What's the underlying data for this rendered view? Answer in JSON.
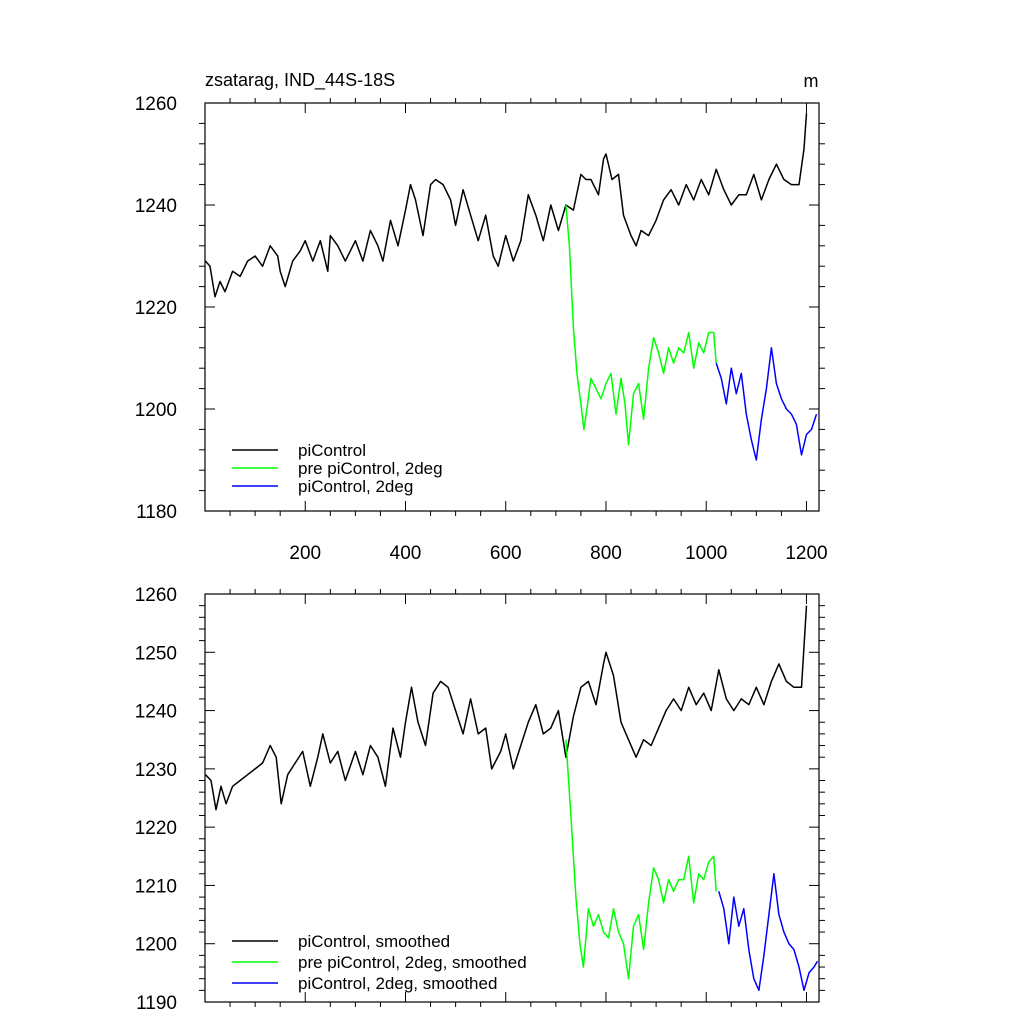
{
  "chart_data": [
    {
      "type": "line",
      "title": "zsatarag, IND_44S-18S",
      "units_label": "m",
      "xlim": [
        0,
        1225
      ],
      "ylim": [
        1180,
        1260
      ],
      "x_tick_labels": [
        "200",
        "400",
        "600",
        "800",
        "1000",
        "1200"
      ],
      "x_ticks": [
        200,
        400,
        600,
        800,
        1000,
        1200
      ],
      "y_tick_labels": [
        "1180",
        "1200",
        "1220",
        "1240",
        "1260"
      ],
      "y_ticks": [
        1180,
        1200,
        1220,
        1240,
        1260
      ],
      "legend_position": "bottom-left",
      "series": [
        {
          "name": "piControl",
          "color": "#000000",
          "x": [
            1,
            10,
            20,
            30,
            40,
            55,
            70,
            85,
            100,
            115,
            130,
            145,
            150,
            160,
            175,
            190,
            200,
            215,
            230,
            245,
            250,
            265,
            280,
            300,
            315,
            330,
            345,
            355,
            370,
            385,
            400,
            410,
            420,
            435,
            450,
            460,
            475,
            490,
            500,
            515,
            530,
            545,
            560,
            575,
            585,
            600,
            615,
            630,
            645,
            660,
            675,
            690,
            705,
            720,
            735,
            750,
            760,
            770,
            785,
            795,
            800,
            812,
            825,
            835,
            850,
            860,
            870,
            885,
            900,
            915,
            930,
            945,
            960,
            975,
            990,
            1005,
            1020,
            1035,
            1050,
            1065,
            1080,
            1095,
            1110,
            1125,
            1140,
            1155,
            1170,
            1185,
            1195,
            1200
          ],
          "values": [
            1229,
            1228,
            1222,
            1225,
            1223,
            1227,
            1226,
            1229,
            1230,
            1228,
            1232,
            1230,
            1227,
            1224,
            1229,
            1231,
            1233,
            1229,
            1233,
            1227,
            1234,
            1232,
            1229,
            1233,
            1229,
            1235,
            1232,
            1229,
            1237,
            1232,
            1239,
            1244,
            1241,
            1234,
            1244,
            1245,
            1244,
            1241,
            1236,
            1243,
            1238,
            1233,
            1238,
            1230,
            1228,
            1234,
            1229,
            1233,
            1242,
            1238,
            1233,
            1240,
            1235,
            1240,
            1239,
            1246,
            1245,
            1245,
            1242,
            1249,
            1250,
            1245,
            1246,
            1238,
            1234,
            1232,
            1235,
            1234,
            1237,
            1241,
            1243,
            1240,
            1244,
            1241,
            1245,
            1242,
            1247,
            1243,
            1240,
            1242,
            1242,
            1246,
            1241,
            1245,
            1248,
            1245,
            1244,
            1244,
            1251,
            1258
          ]
        },
        {
          "name": "pre piControl, 2deg",
          "color": "#00ff00",
          "x": [
            720,
            727,
            735,
            742,
            750,
            756,
            762,
            770,
            780,
            790,
            800,
            810,
            820,
            830,
            838,
            845,
            855,
            865,
            875,
            885,
            895,
            905,
            915,
            925,
            935,
            945,
            955,
            965,
            975,
            985,
            995,
            1005,
            1015,
            1020
          ],
          "values": [
            1240,
            1232,
            1216,
            1207,
            1201,
            1196,
            1200,
            1206,
            1204,
            1202,
            1205,
            1207,
            1199,
            1206,
            1201,
            1193,
            1203,
            1205,
            1198,
            1208,
            1214,
            1211,
            1207,
            1212,
            1209,
            1212,
            1211,
            1215,
            1208,
            1213,
            1211,
            1215,
            1215,
            1209
          ]
        },
        {
          "name": "piControl, 2deg",
          "color": "#0000ff",
          "x": [
            1020,
            1030,
            1040,
            1050,
            1060,
            1070,
            1080,
            1090,
            1100,
            1110,
            1120,
            1130,
            1140,
            1150,
            1160,
            1170,
            1180,
            1190,
            1200,
            1210,
            1220
          ],
          "values": [
            1209,
            1206,
            1201,
            1208,
            1203,
            1207,
            1199,
            1194,
            1190,
            1198,
            1204,
            1212,
            1205,
            1202,
            1200,
            1199,
            1197,
            1191,
            1195,
            1196,
            1199
          ]
        }
      ]
    },
    {
      "type": "line",
      "title": "",
      "xlim": [
        0,
        1225
      ],
      "ylim": [
        1190,
        1260
      ],
      "x_ticks": [
        200,
        400,
        600,
        800,
        1000,
        1200
      ],
      "y_tick_labels": [
        "1190",
        "1200",
        "1210",
        "1220",
        "1230",
        "1240",
        "1250",
        "1260"
      ],
      "y_ticks": [
        1190,
        1200,
        1210,
        1220,
        1230,
        1240,
        1250,
        1260
      ],
      "legend_position": "bottom-left",
      "series": [
        {
          "name": "piControl, smoothed",
          "color": "#000000",
          "x": [
            1,
            12,
            22,
            32,
            42,
            55,
            70,
            85,
            100,
            115,
            130,
            142,
            152,
            165,
            180,
            195,
            210,
            225,
            235,
            250,
            265,
            280,
            300,
            315,
            330,
            345,
            360,
            375,
            390,
            400,
            412,
            425,
            440,
            455,
            470,
            485,
            500,
            515,
            530,
            545,
            560,
            572,
            590,
            600,
            615,
            630,
            645,
            660,
            675,
            690,
            705,
            720,
            735,
            750,
            765,
            780,
            795,
            800,
            815,
            830,
            845,
            860,
            875,
            890,
            905,
            920,
            935,
            950,
            965,
            980,
            995,
            1010,
            1025,
            1040,
            1055,
            1070,
            1085,
            1100,
            1115,
            1130,
            1145,
            1160,
            1175,
            1190,
            1200
          ],
          "values": [
            1229,
            1228,
            1223,
            1227,
            1224,
            1227,
            1228,
            1229,
            1230,
            1231,
            1234,
            1232,
            1224,
            1229,
            1231,
            1233,
            1227,
            1232,
            1236,
            1231,
            1233,
            1228,
            1233,
            1229,
            1234,
            1232,
            1227,
            1237,
            1232,
            1238,
            1244,
            1238,
            1234,
            1243,
            1245,
            1244,
            1240,
            1236,
            1242,
            1236,
            1237,
            1230,
            1233,
            1236,
            1230,
            1234,
            1238,
            1241,
            1236,
            1237,
            1240,
            1232,
            1239,
            1244,
            1245,
            1241,
            1248,
            1250,
            1246,
            1238,
            1235,
            1232,
            1235,
            1234,
            1237,
            1240,
            1242,
            1240,
            1244,
            1241,
            1243,
            1240,
            1247,
            1242,
            1240,
            1242,
            1241,
            1244,
            1241,
            1245,
            1248,
            1245,
            1244,
            1244,
            1258
          ]
        },
        {
          "name": "pre piControl, 2deg, smoothed",
          "color": "#00ff00",
          "x": [
            720,
            730,
            740,
            748,
            755,
            765,
            775,
            785,
            795,
            805,
            815,
            825,
            835,
            845,
            855,
            865,
            875,
            885,
            895,
            905,
            915,
            925,
            935,
            945,
            955,
            965,
            975,
            985,
            995,
            1005,
            1015,
            1020
          ],
          "values": [
            1235,
            1222,
            1208,
            1200,
            1196,
            1206,
            1203,
            1205,
            1202,
            1201,
            1206,
            1202,
            1200,
            1194,
            1203,
            1205,
            1199,
            1207,
            1213,
            1211,
            1207,
            1211,
            1209,
            1211,
            1211,
            1215,
            1207,
            1212,
            1211,
            1214,
            1215,
            1209
          ]
        },
        {
          "name": "piControl, 2deg, smoothed",
          "color": "#0000ff",
          "x": [
            1025,
            1035,
            1045,
            1055,
            1065,
            1075,
            1085,
            1095,
            1105,
            1115,
            1125,
            1135,
            1145,
            1155,
            1165,
            1175,
            1185,
            1195,
            1205,
            1215,
            1222
          ],
          "values": [
            1209,
            1206,
            1200,
            1208,
            1203,
            1206,
            1199,
            1194,
            1192,
            1198,
            1205,
            1212,
            1205,
            1202,
            1200,
            1199,
            1196,
            1192,
            1195,
            1196,
            1197
          ]
        }
      ]
    }
  ]
}
